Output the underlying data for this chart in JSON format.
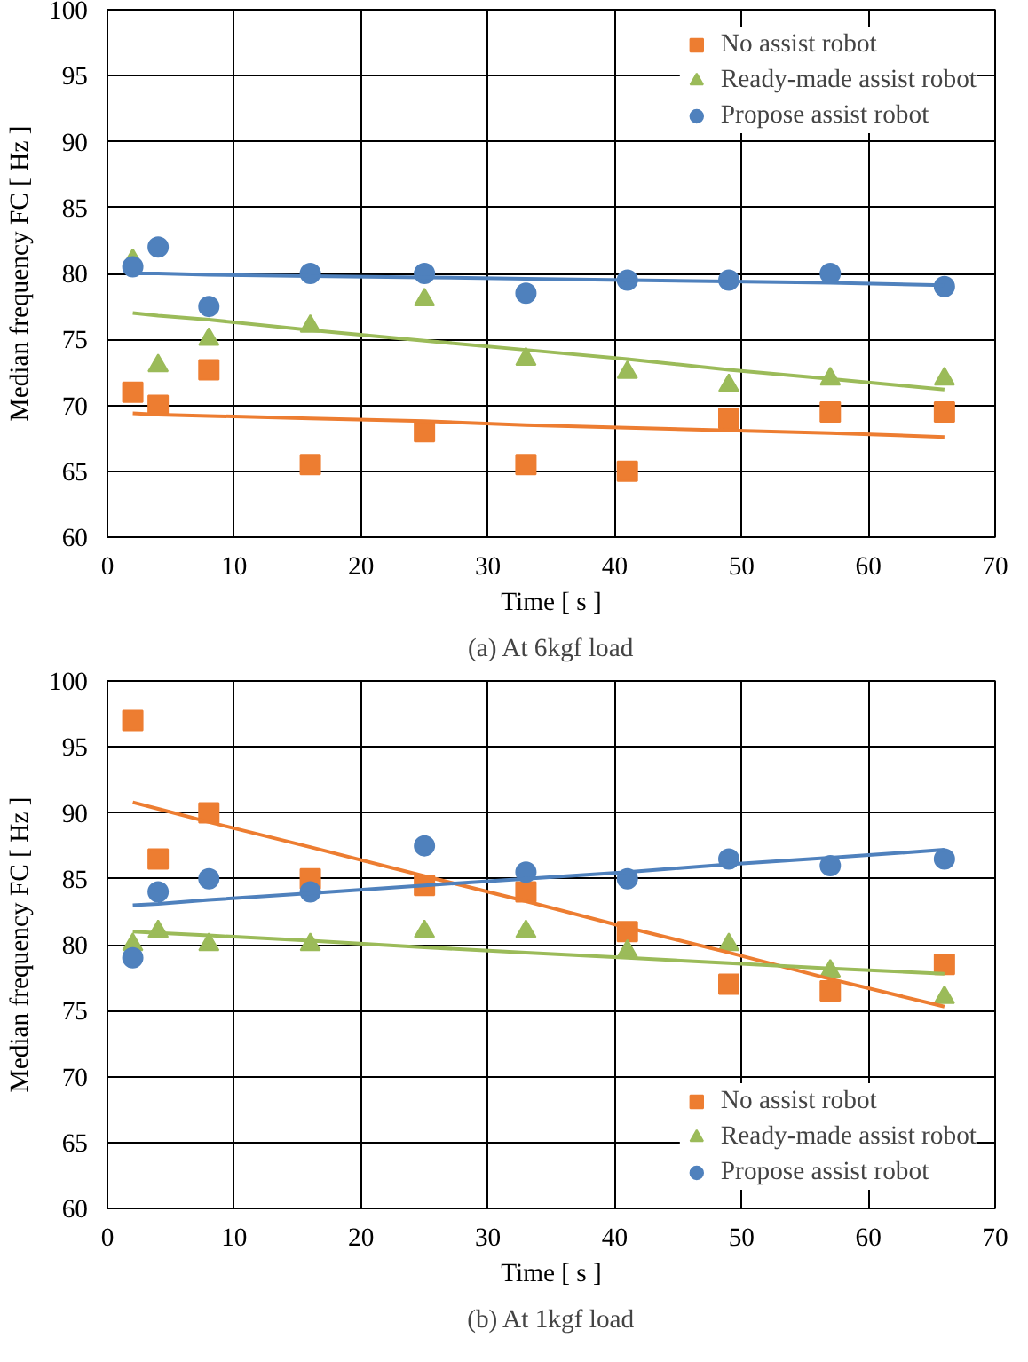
{
  "chart_data": [
    {
      "type": "scatter",
      "xlabel": "Time [ s ]",
      "ylabel": "Median frequency FC [ Hz ]",
      "annotations": [
        "(a) At 6kgf load"
      ],
      "xlim": [
        0,
        70
      ],
      "ylim": [
        60,
        100
      ],
      "xticks": [
        0,
        10,
        20,
        30,
        40,
        50,
        60,
        70
      ],
      "yticks": [
        60,
        65,
        70,
        75,
        80,
        85,
        90,
        95,
        100
      ],
      "grid": true,
      "legend": "top right",
      "x": [
        2,
        4,
        8,
        16,
        25,
        33,
        41,
        49,
        57,
        66
      ],
      "series": [
        {
          "name": "No assist robot",
          "color": "#ed7d31",
          "marker": "square",
          "values": [
            71,
            70,
            72.7,
            65.5,
            68,
            65.5,
            65,
            69,
            69.5,
            69.5
          ]
        },
        {
          "name": "Ready-made assist robot",
          "color": "#9bbb59",
          "marker": "triangle",
          "values": [
            81,
            73,
            75,
            76,
            78,
            73.5,
            72.5,
            71.5,
            72,
            72
          ]
        },
        {
          "name": "Propose assist robot",
          "color": "#4f81bd",
          "marker": "circle",
          "values": [
            80.5,
            82,
            77.5,
            80,
            80,
            78.5,
            79.5,
            79.5,
            80,
            79
          ]
        },
        {
          "type": "line",
          "color": "#ed7d31",
          "values": [
            69.4,
            69.3,
            69.2,
            69,
            68.8,
            68.5,
            68.3,
            68.1,
            67.9,
            67.6
          ]
        },
        {
          "type": "line",
          "color": "#9bbb59",
          "values": [
            77,
            76.8,
            76.5,
            75.7,
            74.9,
            74.2,
            73.5,
            72.7,
            72,
            71.2
          ]
        },
        {
          "type": "line",
          "color": "#4f81bd",
          "values": [
            80,
            80,
            79.9,
            79.8,
            79.7,
            79.6,
            79.5,
            79.4,
            79.3,
            79.1
          ]
        }
      ]
    },
    {
      "type": "scatter",
      "xlabel": "Time [ s ]",
      "ylabel": "Median frequency FC [ Hz ]",
      "annotations": [
        "(b) At 1kgf load"
      ],
      "xlim": [
        0,
        70
      ],
      "ylim": [
        60,
        100
      ],
      "xticks": [
        0,
        10,
        20,
        30,
        40,
        50,
        60,
        70
      ],
      "yticks": [
        60,
        65,
        70,
        75,
        80,
        85,
        90,
        95,
        100
      ],
      "grid": true,
      "legend": "bottom right",
      "x": [
        2,
        4,
        8,
        16,
        25,
        33,
        41,
        49,
        57,
        66
      ],
      "series": [
        {
          "name": "No assist robot",
          "color": "#ed7d31",
          "marker": "square",
          "values": [
            97,
            86.5,
            90,
            85,
            84.5,
            84,
            81,
            77,
            76.5,
            78.5
          ]
        },
        {
          "name": "Ready-made assist robot",
          "color": "#9bbb59",
          "marker": "triangle",
          "values": [
            80,
            81,
            80,
            80,
            81,
            81,
            79.5,
            80,
            78,
            76
          ]
        },
        {
          "name": "Propose assist robot",
          "color": "#4f81bd",
          "marker": "circle",
          "values": [
            79,
            84,
            85,
            84,
            87.5,
            85.5,
            85,
            86.5,
            86,
            86.5
          ]
        },
        {
          "type": "line",
          "color": "#ed7d31",
          "values": [
            90.8,
            90.3,
            89.3,
            87.4,
            85.2,
            83.3,
            81.3,
            79.4,
            77.4,
            75.3
          ]
        },
        {
          "type": "line",
          "color": "#9bbb59",
          "values": [
            81,
            80.9,
            80.7,
            80.3,
            79.8,
            79.4,
            79,
            78.6,
            78.2,
            77.8
          ]
        },
        {
          "type": "line",
          "color": "#4f81bd",
          "values": [
            83,
            83.1,
            83.4,
            83.9,
            84.5,
            85,
            85.5,
            86.1,
            86.6,
            87.2
          ]
        }
      ]
    }
  ]
}
